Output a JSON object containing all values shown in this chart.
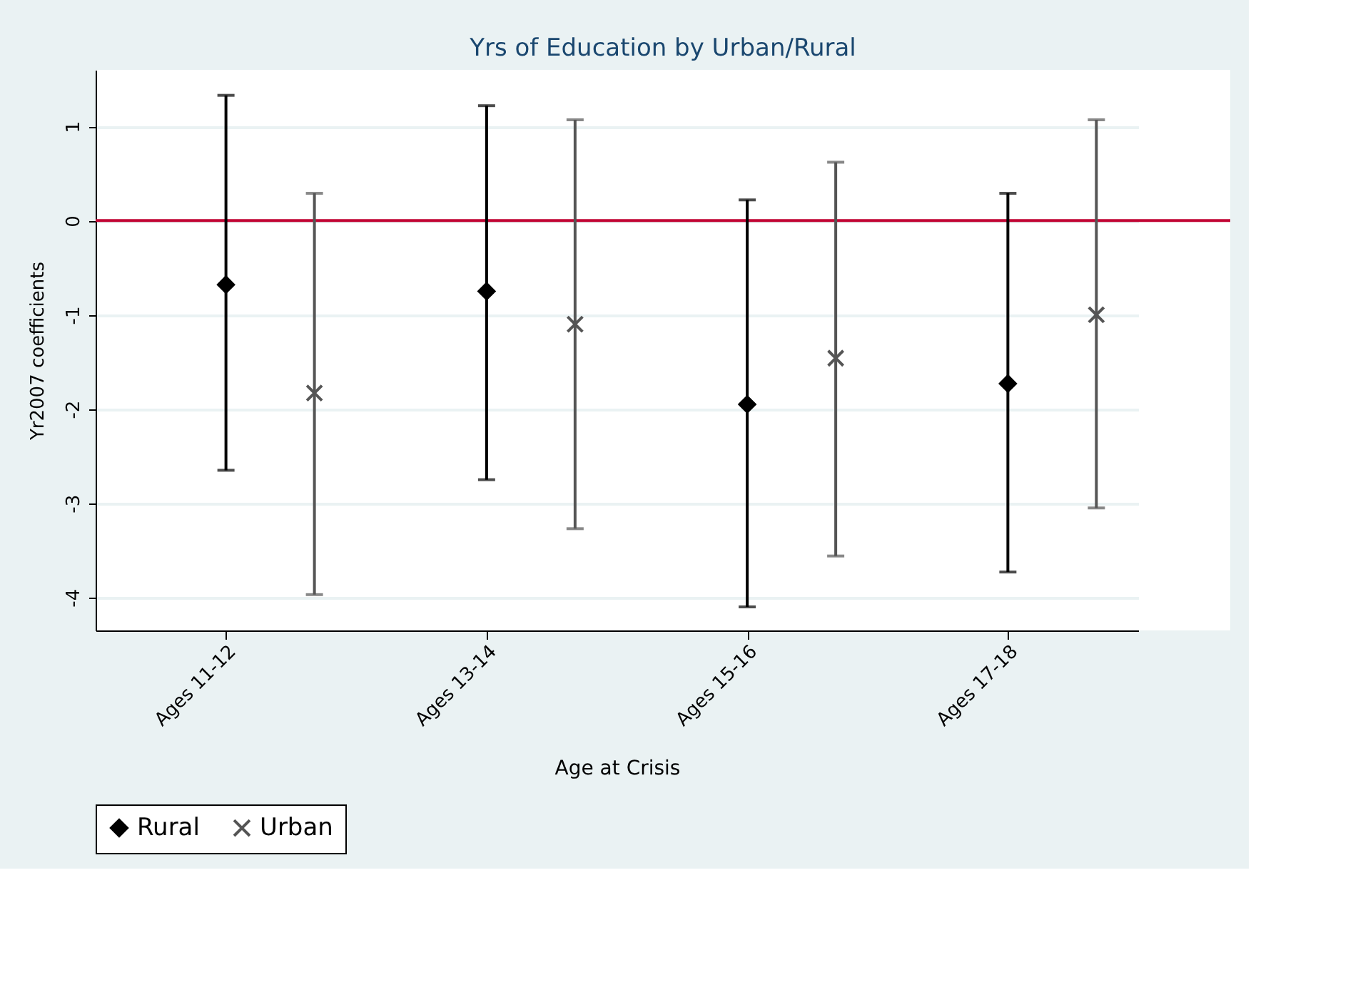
{
  "chart_data": {
    "type": "scatter",
    "title": "Yrs of Education by Urban/Rural",
    "xlabel": "Age at Crisis",
    "ylabel": "Yr2007 coefficients",
    "categories": [
      "Ages 11-12",
      "Ages 13-14",
      "Ages 15-16",
      "Ages 17-18"
    ],
    "series": [
      {
        "name": "Rural",
        "color": "#000000",
        "marker": "diamond",
        "values": [
          -0.68,
          -0.75,
          -1.95,
          -1.73
        ],
        "errors": [
          [
            -2.65,
            1.33
          ],
          [
            -2.75,
            1.22
          ],
          [
            -4.1,
            0.22
          ],
          [
            -3.73,
            0.29
          ]
        ]
      },
      {
        "name": "Urban",
        "color": "#555555",
        "marker": "cross",
        "values": [
          -1.83,
          -1.1,
          -1.46,
          -1.0
        ],
        "errors": [
          [
            -3.97,
            0.29
          ],
          [
            -3.27,
            1.07
          ],
          [
            -3.56,
            0.62
          ],
          [
            -3.05,
            1.07
          ]
        ]
      }
    ],
    "ylim": [
      -4.35,
      1.6
    ],
    "yticks": [
      -4,
      -3,
      -2,
      -1,
      0,
      1
    ],
    "grid": "y",
    "legend": "bottom",
    "ref_lines": [
      {
        "axis": "y",
        "value": 0,
        "color": "#c10534"
      }
    ]
  }
}
